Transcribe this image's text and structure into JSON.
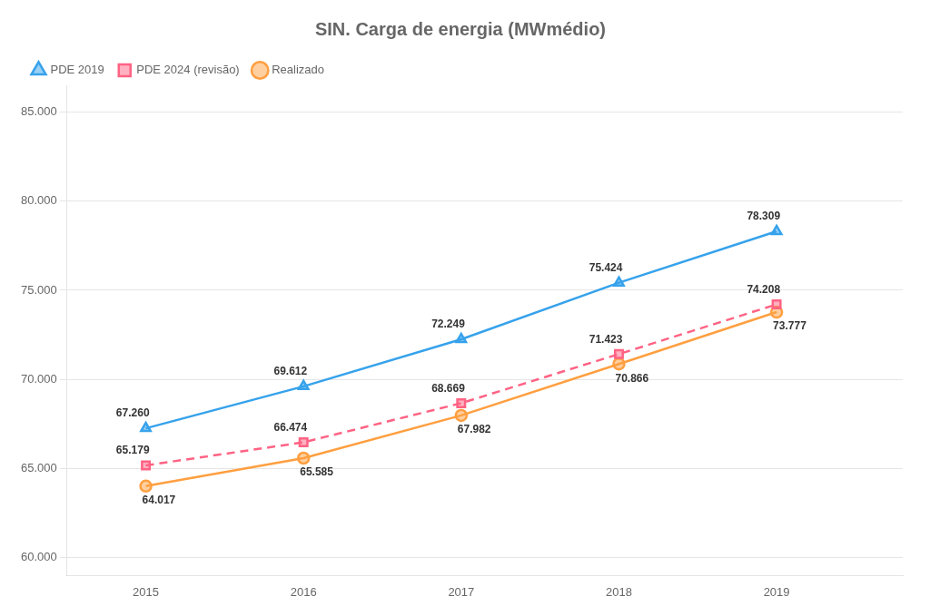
{
  "chart_data": {
    "type": "line",
    "title": "SIN. Carga de energia (MWmédio)",
    "x": [
      2015,
      2016,
      2017,
      2018,
      2019
    ],
    "xlim": [
      2014.5,
      2019.8
    ],
    "xticks": [
      2015,
      2016,
      2017,
      2018,
      2019
    ],
    "ylim": [
      59000,
      86500
    ],
    "yticks": [
      {
        "value": 60000,
        "label": "60.000"
      },
      {
        "value": 65000,
        "label": "65.000"
      },
      {
        "value": 70000,
        "label": "70.000"
      },
      {
        "value": 75000,
        "label": "75.000"
      },
      {
        "value": 80000,
        "label": "80.000"
      },
      {
        "value": 85000,
        "label": "85.000"
      }
    ],
    "grid": true,
    "legend": "upper left",
    "data_labels": true,
    "series": [
      {
        "name": "PDE 2019",
        "marker": "triangle",
        "line_style": "solid",
        "values": [
          67260,
          69612,
          72249,
          75424,
          78309
        ],
        "value_labels": [
          "67.260",
          "69.612",
          "72.249",
          "75.424",
          "78.309"
        ]
      },
      {
        "name": "PDE 2024 (revisão)",
        "marker": "square",
        "line_style": "dashed",
        "values": [
          65179,
          66474,
          68669,
          71423,
          74208
        ],
        "value_labels": [
          "65.179",
          "66.474",
          "68.669",
          "71.423",
          "74.208"
        ]
      },
      {
        "name": "Realizado",
        "marker": "circle",
        "line_style": "solid",
        "values": [
          64017,
          65585,
          67982,
          70866,
          73777
        ],
        "value_labels": [
          "64.017",
          "65.585",
          "67.982",
          "70.866",
          "73.777"
        ]
      }
    ]
  }
}
